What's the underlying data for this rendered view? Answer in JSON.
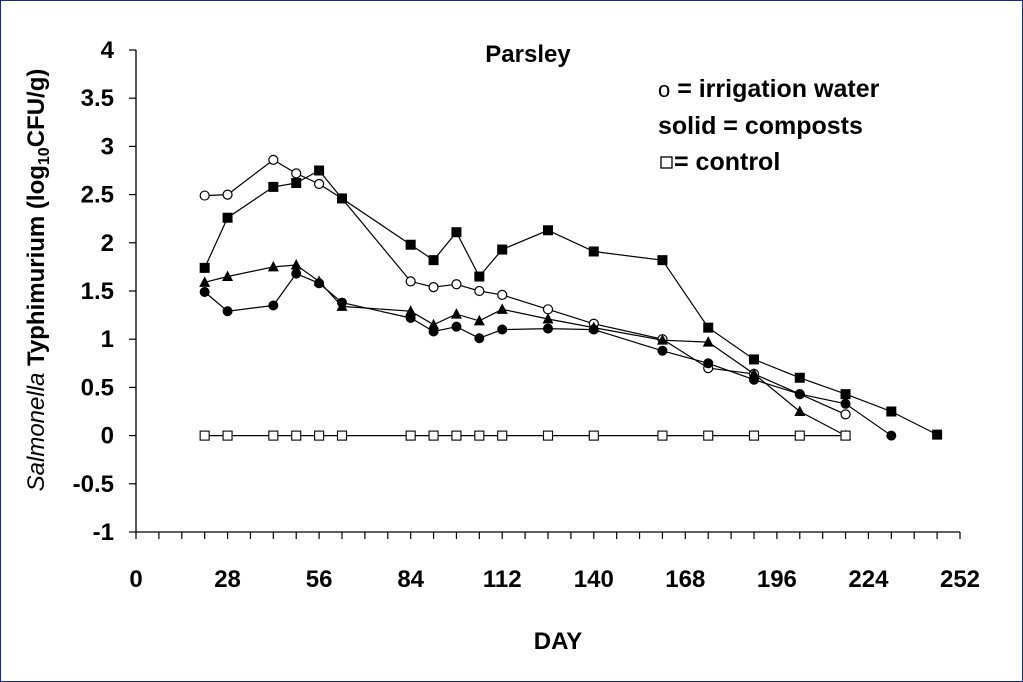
{
  "chart_data": {
    "type": "line",
    "title": "Parsley",
    "xlabel": "DAY",
    "ylabel_italic": "Salmonella",
    "ylabel_main": " Typhimurium (log",
    "ylabel_sub": "10",
    "ylabel_end": "CFU/g)",
    "xlim": [
      0,
      252
    ],
    "ylim": [
      -1,
      4
    ],
    "x_ticks": [
      0,
      28,
      56,
      84,
      112,
      140,
      168,
      196,
      224,
      252
    ],
    "y_ticks": [
      -1,
      -0.5,
      0,
      0.5,
      1,
      1.5,
      2,
      2.5,
      3,
      3.5,
      4
    ],
    "y_tick_labels": [
      "-1",
      "-0.5",
      "0",
      "0.5",
      "1",
      "1.5",
      "2",
      "2.5",
      "3",
      "3.5",
      "4"
    ],
    "legend": {
      "line1_symbol": "o",
      "line1_text": " = irrigation water",
      "line2_text": "solid = composts",
      "line3_text": " = control"
    },
    "series": [
      {
        "marker": "open-circle",
        "x": [
          21,
          28,
          42,
          49,
          56,
          63,
          84,
          91,
          98,
          105,
          112,
          126,
          140,
          161,
          175,
          189,
          203,
          217
        ],
        "y": [
          2.49,
          2.5,
          2.86,
          2.72,
          2.61,
          2.46,
          1.6,
          1.54,
          1.57,
          1.5,
          1.46,
          1.31,
          1.16,
          1.0,
          0.7,
          0.64,
          0.43,
          0.22
        ]
      },
      {
        "marker": "filled-square",
        "x": [
          21,
          28,
          42,
          49,
          56,
          63,
          84,
          91,
          98,
          105,
          112,
          126,
          140,
          161,
          175,
          189,
          203,
          217,
          231,
          245
        ],
        "y": [
          1.74,
          2.26,
          2.58,
          2.62,
          2.75,
          2.46,
          1.98,
          1.82,
          2.11,
          1.65,
          1.93,
          2.13,
          1.91,
          1.82,
          1.12,
          0.79,
          0.6,
          0.43,
          0.25,
          0.01
        ]
      },
      {
        "marker": "filled-triangle",
        "x": [
          21,
          28,
          42,
          49,
          56,
          63,
          84,
          91,
          98,
          105,
          112,
          126,
          140,
          161,
          175,
          189,
          203,
          217
        ],
        "y": [
          1.59,
          1.65,
          1.75,
          1.77,
          1.6,
          1.34,
          1.29,
          1.15,
          1.26,
          1.19,
          1.31,
          1.21,
          1.12,
          0.99,
          0.97,
          0.64,
          0.25,
          0.0
        ]
      },
      {
        "marker": "filled-circle",
        "x": [
          21,
          28,
          42,
          49,
          56,
          63,
          84,
          91,
          98,
          105,
          112,
          126,
          140,
          161,
          175,
          189,
          203,
          217,
          231
        ],
        "y": [
          1.49,
          1.29,
          1.35,
          1.68,
          1.58,
          1.38,
          1.22,
          1.08,
          1.13,
          1.01,
          1.1,
          1.11,
          1.1,
          0.88,
          0.75,
          0.58,
          0.43,
          0.33,
          0.0
        ]
      },
      {
        "marker": "open-square",
        "x": [
          21,
          28,
          42,
          49,
          56,
          63,
          84,
          91,
          98,
          105,
          112,
          126,
          140,
          161,
          175,
          189,
          203,
          217
        ],
        "y": [
          0,
          0,
          0,
          0,
          0,
          0,
          0,
          0,
          0,
          0,
          0,
          0,
          0,
          0,
          0,
          0,
          0,
          0
        ]
      }
    ]
  }
}
